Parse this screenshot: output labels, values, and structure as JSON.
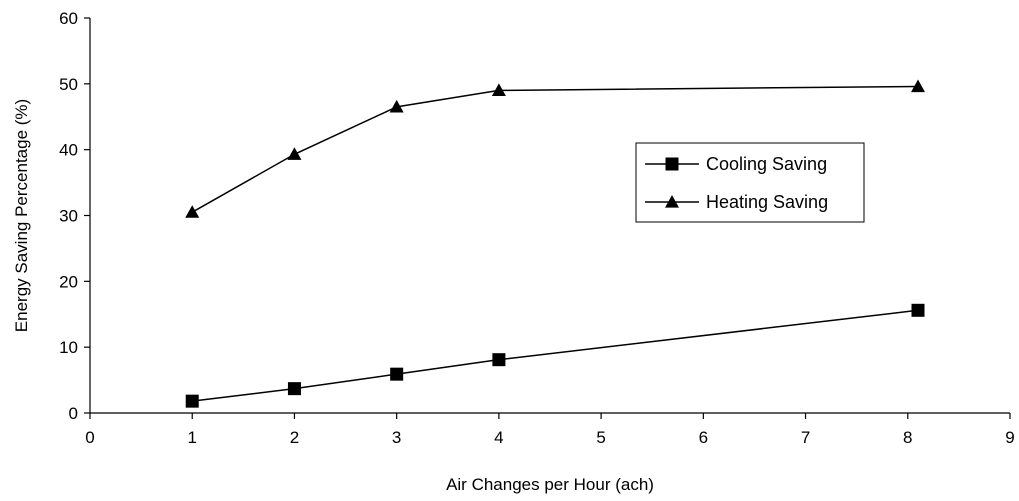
{
  "chart_data": {
    "type": "line",
    "title": "",
    "xlabel": "Air Changes per Hour (ach)",
    "ylabel": "Energy Saving Percentage (%)",
    "xlim": [
      0,
      9
    ],
    "ylim": [
      0,
      60
    ],
    "x_ticks": [
      0,
      1,
      2,
      3,
      4,
      5,
      6,
      7,
      8,
      9
    ],
    "y_ticks": [
      0,
      10,
      20,
      30,
      40,
      50,
      60
    ],
    "grid": false,
    "legend_position": "center-right",
    "series": [
      {
        "name": "Cooling Saving",
        "marker": "square",
        "color": "#000000",
        "x": [
          1,
          2,
          3,
          4,
          8.1
        ],
        "y": [
          1.8,
          3.7,
          5.9,
          8.1,
          15.6
        ]
      },
      {
        "name": "Heating Saving",
        "marker": "triangle",
        "color": "#000000",
        "x": [
          1,
          2,
          3,
          4,
          8.1
        ],
        "y": [
          30.5,
          39.3,
          46.5,
          49.0,
          49.6
        ]
      }
    ]
  }
}
